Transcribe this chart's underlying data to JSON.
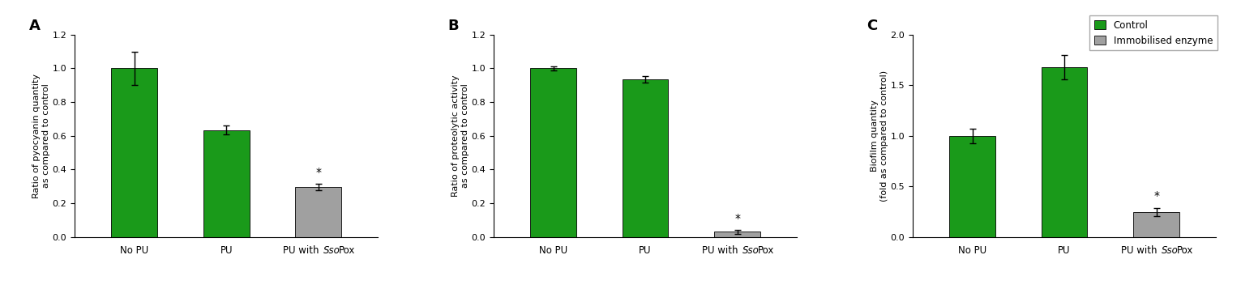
{
  "panels": [
    {
      "label": "A",
      "ylabel": "Ratio of pyocyanin quantity\nas compared to control",
      "ylim": [
        0,
        1.2
      ],
      "yticks": [
        0.0,
        0.2,
        0.4,
        0.6,
        0.8,
        1.0,
        1.2
      ],
      "values": [
        1.0,
        0.635,
        0.295
      ],
      "errors": [
        0.1,
        0.025,
        0.02
      ],
      "colors": [
        "#1a9a1a",
        "#1a9a1a",
        "#a0a0a0"
      ],
      "star_bar": 2
    },
    {
      "label": "B",
      "ylabel": "Ratio of proteolytic activity\nas compared to control",
      "ylim": [
        0,
        1.2
      ],
      "yticks": [
        0.0,
        0.2,
        0.4,
        0.6,
        0.8,
        1.0,
        1.2
      ],
      "values": [
        1.0,
        0.935,
        0.03
      ],
      "errors": [
        0.01,
        0.02,
        0.01
      ],
      "colors": [
        "#1a9a1a",
        "#1a9a1a",
        "#a0a0a0"
      ],
      "star_bar": 2
    },
    {
      "label": "C",
      "ylabel": "Biofilm quantity\n(fold as compared to control)",
      "ylim": [
        0.0,
        2.0
      ],
      "yticks": [
        0.0,
        0.5,
        1.0,
        1.5,
        2.0
      ],
      "values": [
        1.0,
        1.68,
        0.25
      ],
      "errors": [
        0.07,
        0.12,
        0.04
      ],
      "colors": [
        "#1a9a1a",
        "#1a9a1a",
        "#a0a0a0"
      ],
      "star_bar": 2
    }
  ],
  "categories": [
    "No PU",
    "PU",
    "PU with SsoPox"
  ],
  "green_color": "#1a9a1a",
  "gray_color": "#a0a0a0",
  "bg_color": "#ffffff",
  "legend_labels": [
    "Control",
    "Immobilised enzyme"
  ],
  "bar_width": 0.5,
  "panel_label_fontsize": 13,
  "tick_fontsize": 8,
  "ylabel_fontsize": 8,
  "xlabel_fontsize": 8.5
}
